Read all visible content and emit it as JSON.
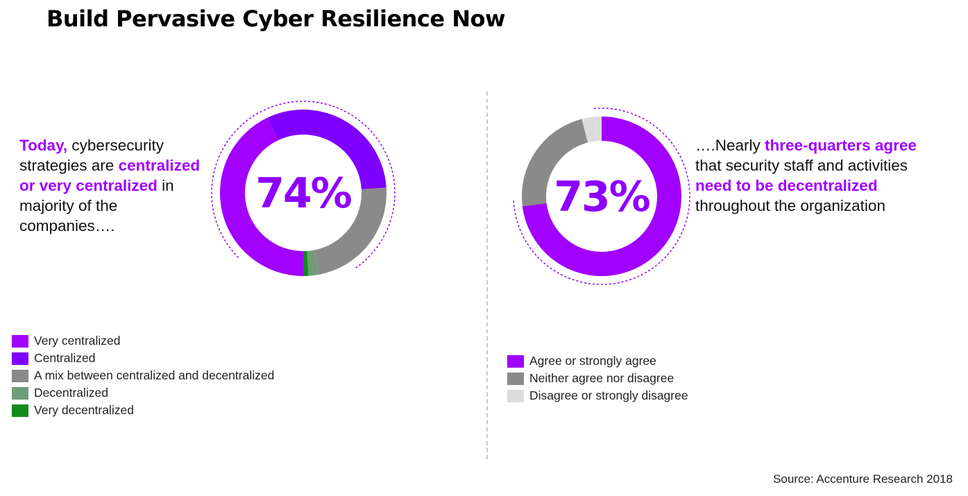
{
  "title": "Build Pervasive Cyber Resilience Now",
  "source": "Source: Accenture Research 2018",
  "left": {
    "blurb": [
      {
        "text": "Today,",
        "hl": true
      },
      {
        "text": " cybersecurity strategies are ",
        "hl": false
      },
      {
        "text": "centralized or very centralized",
        "hl": true
      },
      {
        "text": " in majority of the companies….",
        "hl": false
      }
    ],
    "center_label": "74%"
  },
  "right": {
    "blurb": [
      {
        "text": "….Nearly ",
        "hl": false
      },
      {
        "text": "three-quarters agree",
        "hl": true
      },
      {
        "text": " that security staff and activities ",
        "hl": false
      },
      {
        "text": "need to be decentralized",
        "hl": true
      },
      {
        "text": " throughout the organization",
        "hl": false
      }
    ],
    "center_label": "73%"
  },
  "chart_data": [
    {
      "type": "pie",
      "title": "",
      "center_label": "74%",
      "series": [
        {
          "name": "Very centralized",
          "value": 43,
          "color": "#a100ff"
        },
        {
          "name": "Centralized",
          "value": 31,
          "color": "#7e00ff"
        },
        {
          "name": "A mix between centralized and decentralized",
          "value": 23,
          "color": "#8a8a8a"
        },
        {
          "name": "Decentralized",
          "value": 2,
          "color": "#6f9c79"
        },
        {
          "name": "Very decentralized",
          "value": 1,
          "color": "#128b1c"
        }
      ],
      "legend_position": "bottom-left"
    },
    {
      "type": "pie",
      "title": "",
      "center_label": "73%",
      "series": [
        {
          "name": "Agree or strongly agree",
          "value": 73,
          "color": "#a100ff"
        },
        {
          "name": "Neither agree nor disagree",
          "value": 23,
          "color": "#8a8a8a"
        },
        {
          "name": "Disagree or strongly disagree",
          "value": 4,
          "color": "#dcdcdc"
        }
      ],
      "legend_position": "bottom-left"
    }
  ]
}
